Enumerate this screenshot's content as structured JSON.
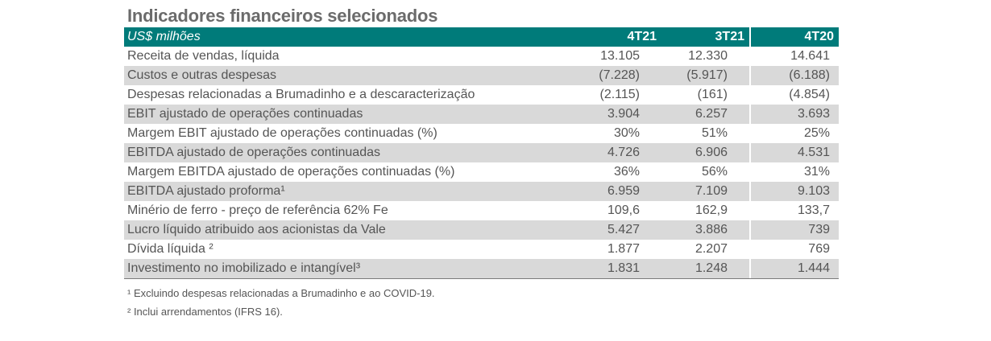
{
  "title": "Indicadores financeiros selecionados",
  "table": {
    "unit_label": "US$ milhões",
    "columns": [
      "4T21",
      "3T21",
      "4T20"
    ],
    "rows": [
      {
        "label": "Receita de vendas, líquida",
        "values": [
          "13.105",
          "12.330",
          "14.641"
        ]
      },
      {
        "label": "Custos e outras despesas",
        "values": [
          "(7.228)",
          "(5.917)",
          "(6.188)"
        ]
      },
      {
        "label": "Despesas relacionadas a Brumadinho e a descaracterização",
        "values": [
          "(2.115)",
          "(161)",
          "(4.854)"
        ]
      },
      {
        "label": "EBIT ajustado de operações continuadas",
        "values": [
          "3.904",
          "6.257",
          "3.693"
        ]
      },
      {
        "label": "Margem EBIT ajustado de operações continuadas (%)",
        "values": [
          "30%",
          "51%",
          "25%"
        ]
      },
      {
        "label": "EBITDA ajustado de operações continuadas",
        "values": [
          "4.726",
          "6.906",
          "4.531"
        ]
      },
      {
        "label": "Margem EBITDA ajustado de operações continuadas (%)",
        "values": [
          "36%",
          "56%",
          "31%"
        ]
      },
      {
        "label": "EBITDA ajustado proforma¹",
        "values": [
          "6.959",
          "7.109",
          "9.103"
        ]
      },
      {
        "label": "Minério de ferro -  preço de referência 62% Fe",
        "values": [
          "109,6",
          "162,9",
          "133,7"
        ]
      },
      {
        "label": "Lucro líquido atribuido aos acionistas da Vale",
        "values": [
          "5.427",
          "3.886",
          "739"
        ]
      },
      {
        "label": "Dívida líquida ²",
        "values": [
          "1.877",
          "2.207",
          "769"
        ]
      },
      {
        "label": "Investimento no imobilizado e intangível³",
        "values": [
          "1.831",
          "1.248",
          "1.444"
        ]
      }
    ]
  },
  "footnotes": [
    "¹ Excluindo despesas relacionadas a Brumadinho e ao COVID-19.",
    "² Inclui arrendamentos (IFRS 16)."
  ],
  "colors": {
    "header_bg": "#007b7a",
    "header_text": "#ffffff",
    "row_shade": "#d9d9d9",
    "title_text": "#6b6b6b",
    "body_text": "#555555"
  }
}
